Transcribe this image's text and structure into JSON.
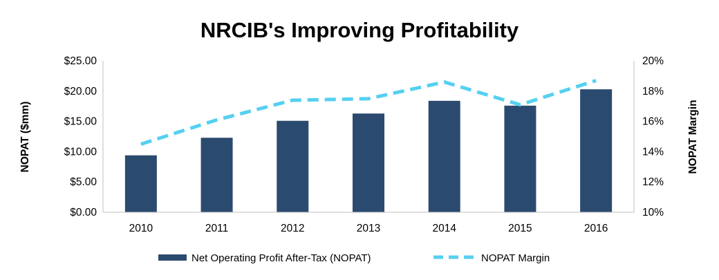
{
  "chart_data": {
    "type": "bar",
    "title": "NRCIB's Improving Profitability",
    "categories": [
      "2010",
      "2011",
      "2012",
      "2013",
      "2014",
      "2015",
      "2016"
    ],
    "series": [
      {
        "name": "Net Operating Profit After-Tax (NOPAT)",
        "type": "bar",
        "axis": "left",
        "color": "#2b4a6f",
        "values": [
          9.4,
          12.3,
          15.1,
          16.3,
          18.4,
          17.6,
          20.3
        ]
      },
      {
        "name": "NOPAT Margin",
        "type": "line",
        "style": "dashed",
        "axis": "right",
        "color": "#55d0f1",
        "values": [
          14.5,
          16.1,
          17.4,
          17.5,
          18.6,
          17.1,
          18.7
        ]
      }
    ],
    "ylabel": "NOPAT ($mm)",
    "ylim": [
      0,
      25
    ],
    "yticks": [
      "$0.00",
      "$5.00",
      "$10.00",
      "$15.00",
      "$20.00",
      "$25.00"
    ],
    "y2label": "NOPAT Margin",
    "y2lim": [
      10,
      20
    ],
    "y2ticks": [
      "10%",
      "12%",
      "14%",
      "16%",
      "18%",
      "20%"
    ],
    "grid": false,
    "legend": "bottom"
  }
}
